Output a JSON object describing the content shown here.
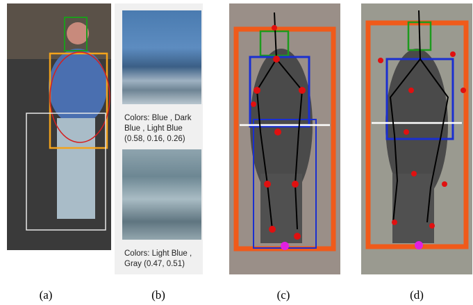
{
  "panels": [
    {
      "label": "(a)"
    },
    {
      "label": "(b)",
      "swatches": [
        {
          "lines": [
            "Colors: Blue , Dark",
            "Blue , Light Blue",
            "(0.58, 0.16, 0.26)"
          ]
        },
        {
          "lines": [
            "Colors: Light Blue ,",
            "Gray (0.47, 0.51)"
          ]
        }
      ]
    },
    {
      "label": "(c)"
    },
    {
      "label": "(d)"
    }
  ]
}
